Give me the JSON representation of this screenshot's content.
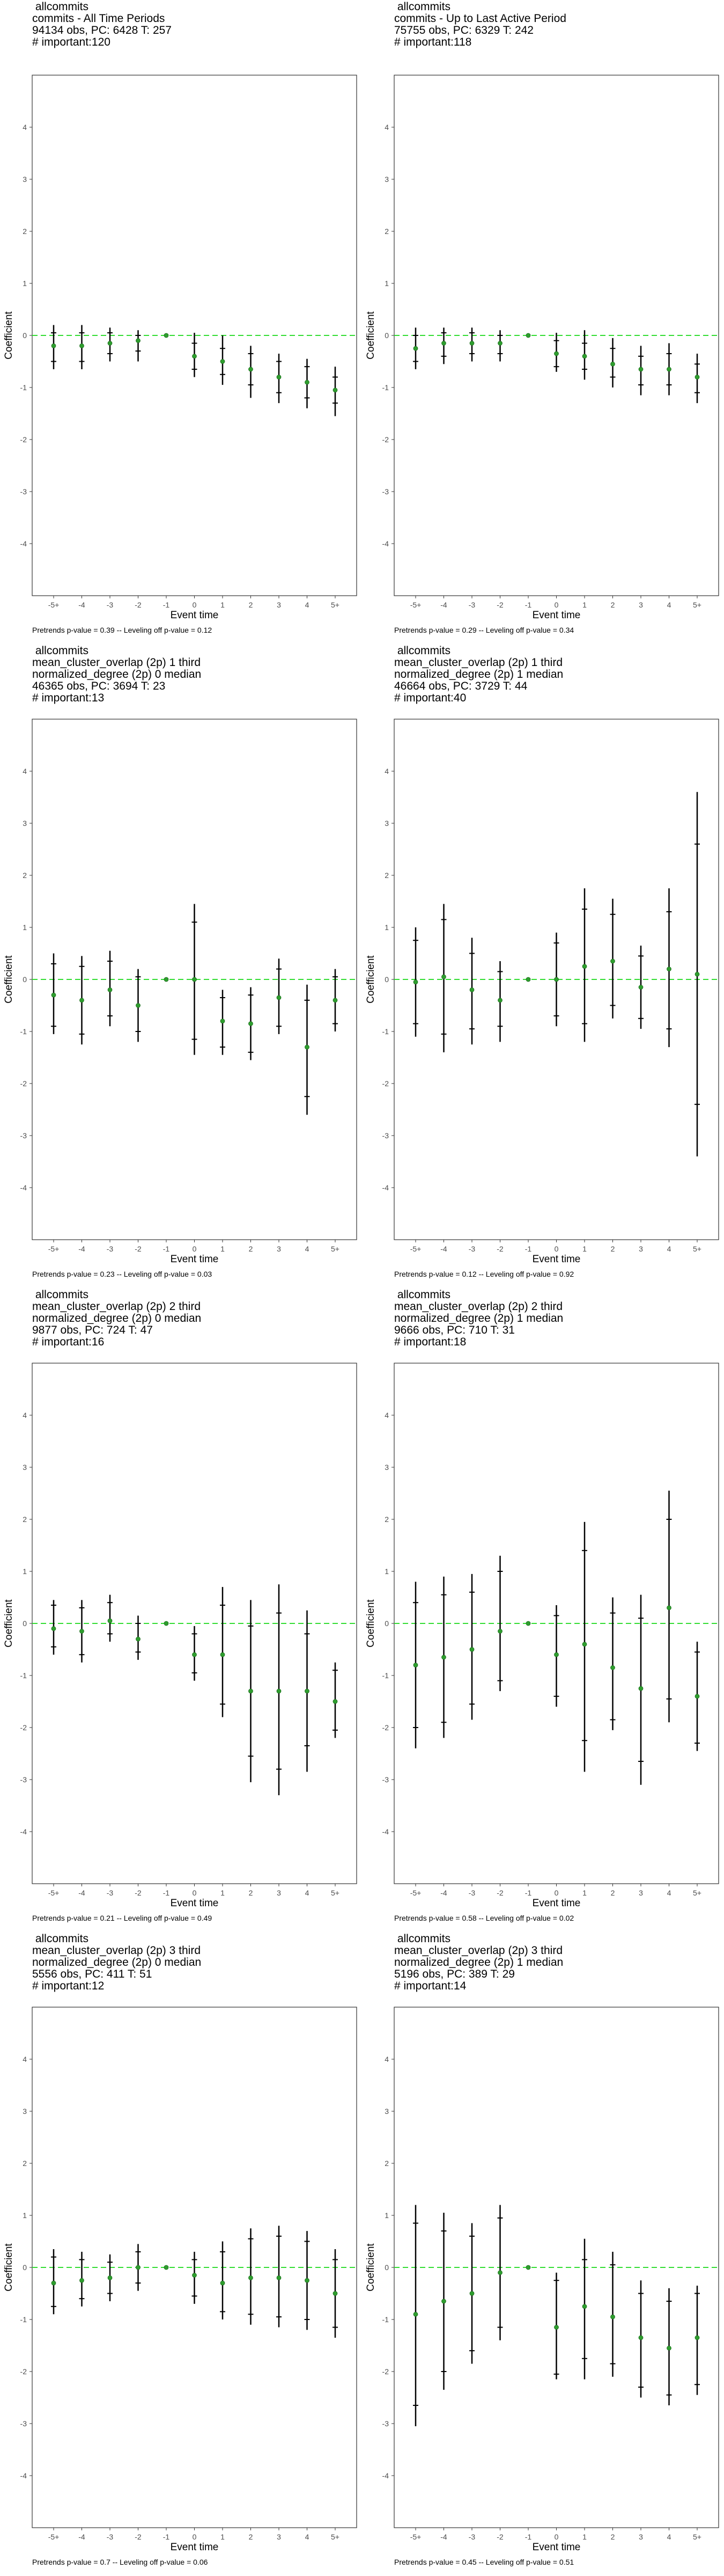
{
  "chart_data": [
    {
      "type": "scatter",
      "title_lines": [
        " allcommits",
        "commits - All Time Periods",
        "94134 obs, PC: 6428 T: 257",
        "# important:120"
      ],
      "xlabel": "Event time",
      "ylabel": "Coefficient",
      "categories": [
        "-5+",
        "-4",
        "-3",
        "-2",
        "-1",
        "0",
        "1",
        "2",
        "3",
        "4",
        "5+"
      ],
      "ylim": [
        -5,
        5
      ],
      "yticks": [
        -4,
        -3,
        -2,
        -1,
        0,
        1,
        2,
        3,
        4
      ],
      "reference_line": 0,
      "points": [
        -0.2,
        -0.2,
        -0.15,
        -0.1,
        0.0,
        -0.4,
        -0.5,
        -0.65,
        -0.8,
        -0.9,
        -1.05
      ],
      "ci_outer": [
        [
          -0.65,
          0.2
        ],
        [
          -0.65,
          0.2
        ],
        [
          -0.5,
          0.15
        ],
        [
          -0.5,
          0.1
        ],
        [
          0,
          0
        ],
        [
          -0.8,
          0.05
        ],
        [
          -0.95,
          0
        ],
        [
          -1.2,
          -0.2
        ],
        [
          -1.3,
          -0.35
        ],
        [
          -1.4,
          -0.45
        ],
        [
          -1.55,
          -0.6
        ]
      ],
      "ci_inner": [
        [
          -0.5,
          0.05
        ],
        [
          -0.5,
          0.05
        ],
        [
          -0.35,
          0.05
        ],
        [
          -0.3,
          0.0
        ],
        [
          0,
          0
        ],
        [
          -0.65,
          -0.15
        ],
        [
          -0.75,
          -0.25
        ],
        [
          -0.95,
          -0.35
        ],
        [
          -1.1,
          -0.5
        ],
        [
          -1.2,
          -0.6
        ],
        [
          -1.3,
          -0.8
        ]
      ],
      "caption": "Pretrends p-value = 0.39 -- Leveling off p-value = 0.12"
    },
    {
      "type": "scatter",
      "title_lines": [
        " allcommits",
        "commits - Up to Last Active Period",
        "75755 obs, PC: 6329 T: 242",
        "# important:118"
      ],
      "xlabel": "Event time",
      "ylabel": "Coefficient",
      "categories": [
        "-5+",
        "-4",
        "-3",
        "-2",
        "-1",
        "0",
        "1",
        "2",
        "3",
        "4",
        "5+"
      ],
      "ylim": [
        -5,
        5
      ],
      "yticks": [
        -4,
        -3,
        -2,
        -1,
        0,
        1,
        2,
        3,
        4
      ],
      "reference_line": 0,
      "points": [
        -0.25,
        -0.15,
        -0.15,
        -0.15,
        0.0,
        -0.35,
        -0.4,
        -0.55,
        -0.65,
        -0.65,
        -0.8
      ],
      "ci_outer": [
        [
          -0.65,
          0.15
        ],
        [
          -0.55,
          0.15
        ],
        [
          -0.5,
          0.15
        ],
        [
          -0.5,
          0.1
        ],
        [
          0,
          0
        ],
        [
          -0.7,
          0.05
        ],
        [
          -0.85,
          0.1
        ],
        [
          -1.0,
          -0.05
        ],
        [
          -1.15,
          -0.2
        ],
        [
          -1.15,
          -0.15
        ],
        [
          -1.3,
          -0.35
        ]
      ],
      "ci_inner": [
        [
          -0.5,
          0.0
        ],
        [
          -0.4,
          0.05
        ],
        [
          -0.35,
          0.05
        ],
        [
          -0.35,
          0.0
        ],
        [
          0,
          0
        ],
        [
          -0.6,
          -0.1
        ],
        [
          -0.65,
          -0.15
        ],
        [
          -0.8,
          -0.25
        ],
        [
          -0.95,
          -0.4
        ],
        [
          -0.95,
          -0.35
        ],
        [
          -1.1,
          -0.55
        ]
      ],
      "caption": "Pretrends p-value = 0.29 -- Leveling off p-value = 0.34"
    },
    {
      "type": "scatter",
      "title_lines": [
        " allcommits",
        "mean_cluster_overlap (2p) 1 third",
        "normalized_degree (2p) 0 median",
        "46365 obs, PC: 3694 T: 23",
        "# important:13"
      ],
      "xlabel": "Event time",
      "ylabel": "Coefficient",
      "categories": [
        "-5+",
        "-4",
        "-3",
        "-2",
        "-1",
        "0",
        "1",
        "2",
        "3",
        "4",
        "5+"
      ],
      "ylim": [
        -5,
        5
      ],
      "yticks": [
        -4,
        -3,
        -2,
        -1,
        0,
        1,
        2,
        3,
        4
      ],
      "reference_line": 0,
      "points": [
        -0.3,
        -0.4,
        -0.2,
        -0.5,
        0.0,
        0.0,
        -0.8,
        -0.85,
        -0.35,
        -1.3,
        -0.4
      ],
      "ci_outer": [
        [
          -1.05,
          0.5
        ],
        [
          -1.25,
          0.45
        ],
        [
          -0.9,
          0.55
        ],
        [
          -1.2,
          0.2
        ],
        [
          0,
          0
        ],
        [
          -1.45,
          1.45
        ],
        [
          -1.45,
          -0.2
        ],
        [
          -1.55,
          -0.15
        ],
        [
          -1.05,
          0.4
        ],
        [
          -2.6,
          -0.1
        ],
        [
          -1.0,
          0.2
        ]
      ],
      "ci_inner": [
        [
          -0.9,
          0.3
        ],
        [
          -1.05,
          0.25
        ],
        [
          -0.7,
          0.35
        ],
        [
          -1.0,
          0.05
        ],
        [
          0,
          0
        ],
        [
          -1.15,
          1.1
        ],
        [
          -1.3,
          -0.35
        ],
        [
          -1.4,
          -0.3
        ],
        [
          -0.9,
          0.2
        ],
        [
          -2.25,
          -0.4
        ],
        [
          -0.85,
          0.05
        ]
      ],
      "caption": "Pretrends p-value = 0.23 -- Leveling off p-value = 0.03"
    },
    {
      "type": "scatter",
      "title_lines": [
        " allcommits",
        "mean_cluster_overlap (2p) 1 third",
        "normalized_degree (2p) 1 median",
        "46664 obs, PC: 3729 T: 44",
        "# important:40"
      ],
      "xlabel": "Event time",
      "ylabel": "Coefficient",
      "categories": [
        "-5+",
        "-4",
        "-3",
        "-2",
        "-1",
        "0",
        "1",
        "2",
        "3",
        "4",
        "5+"
      ],
      "ylim": [
        -5,
        5
      ],
      "yticks": [
        -4,
        -3,
        -2,
        -1,
        0,
        1,
        2,
        3,
        4
      ],
      "reference_line": 0,
      "points": [
        -0.05,
        0.05,
        -0.2,
        -0.4,
        0.0,
        0.0,
        0.25,
        0.35,
        -0.15,
        0.2,
        0.1
      ],
      "ci_outer": [
        [
          -1.1,
          1.0
        ],
        [
          -1.4,
          1.45
        ],
        [
          -1.25,
          0.8
        ],
        [
          -1.2,
          0.35
        ],
        [
          0,
          0
        ],
        [
          -0.9,
          0.9
        ],
        [
          -1.2,
          1.75
        ],
        [
          -0.75,
          1.55
        ],
        [
          -0.95,
          0.65
        ],
        [
          -1.3,
          1.75
        ],
        [
          -3.4,
          3.6
        ]
      ],
      "ci_inner": [
        [
          -0.85,
          0.75
        ],
        [
          -1.05,
          1.15
        ],
        [
          -0.95,
          0.5
        ],
        [
          -0.9,
          0.15
        ],
        [
          0,
          0
        ],
        [
          -0.7,
          0.7
        ],
        [
          -0.85,
          1.35
        ],
        [
          -0.5,
          1.25
        ],
        [
          -0.75,
          0.45
        ],
        [
          -0.95,
          1.3
        ],
        [
          -2.4,
          2.6
        ]
      ],
      "caption": "Pretrends p-value = 0.12 -- Leveling off p-value = 0.92"
    },
    {
      "type": "scatter",
      "title_lines": [
        " allcommits",
        "mean_cluster_overlap (2p) 2 third",
        "normalized_degree (2p) 0 median",
        "9877 obs, PC: 724 T: 47",
        "# important:16"
      ],
      "xlabel": "Event time",
      "ylabel": "Coefficient",
      "categories": [
        "-5+",
        "-4",
        "-3",
        "-2",
        "-1",
        "0",
        "1",
        "2",
        "3",
        "4",
        "5+"
      ],
      "ylim": [
        -5,
        5
      ],
      "yticks": [
        -4,
        -3,
        -2,
        -1,
        0,
        1,
        2,
        3,
        4
      ],
      "reference_line": 0,
      "points": [
        -0.1,
        -0.15,
        0.05,
        -0.3,
        0.0,
        -0.6,
        -0.6,
        -1.3,
        -1.3,
        -1.3,
        -1.5
      ],
      "ci_outer": [
        [
          -0.6,
          0.45
        ],
        [
          -0.75,
          0.45
        ],
        [
          -0.35,
          0.55
        ],
        [
          -0.7,
          0.15
        ],
        [
          0,
          0
        ],
        [
          -1.1,
          -0.05
        ],
        [
          -1.8,
          0.7
        ],
        [
          -3.05,
          0.45
        ],
        [
          -3.3,
          0.75
        ],
        [
          -2.85,
          0.25
        ],
        [
          -2.2,
          -0.75
        ]
      ],
      "ci_inner": [
        [
          -0.45,
          0.35
        ],
        [
          -0.6,
          0.3
        ],
        [
          -0.2,
          0.4
        ],
        [
          -0.55,
          0.0
        ],
        [
          0,
          0
        ],
        [
          -0.95,
          -0.2
        ],
        [
          -1.55,
          0.35
        ],
        [
          -2.55,
          -0.05
        ],
        [
          -2.8,
          0.2
        ],
        [
          -2.35,
          -0.2
        ],
        [
          -2.05,
          -0.9
        ]
      ],
      "caption": "Pretrends p-value = 0.21 -- Leveling off p-value = 0.49"
    },
    {
      "type": "scatter",
      "title_lines": [
        " allcommits",
        "mean_cluster_overlap (2p) 2 third",
        "normalized_degree (2p) 1 median",
        "9666 obs, PC: 710 T: 31",
        "# important:18"
      ],
      "xlabel": "Event time",
      "ylabel": "Coefficient",
      "categories": [
        "-5+",
        "-4",
        "-3",
        "-2",
        "-1",
        "0",
        "1",
        "2",
        "3",
        "4",
        "5+"
      ],
      "ylim": [
        -5,
        5
      ],
      "yticks": [
        -4,
        -3,
        -2,
        -1,
        0,
        1,
        2,
        3,
        4
      ],
      "reference_line": 0,
      "points": [
        -0.8,
        -0.65,
        -0.5,
        -0.15,
        0.0,
        -0.6,
        -0.4,
        -0.85,
        -1.25,
        0.3,
        -1.4
      ],
      "ci_outer": [
        [
          -2.4,
          0.8
        ],
        [
          -2.2,
          0.9
        ],
        [
          -1.85,
          0.95
        ],
        [
          -1.3,
          1.3
        ],
        [
          0,
          0
        ],
        [
          -1.6,
          0.35
        ],
        [
          -2.85,
          1.95
        ],
        [
          -2.05,
          0.5
        ],
        [
          -3.1,
          0.55
        ],
        [
          -1.9,
          2.55
        ],
        [
          -2.45,
          -0.35
        ]
      ],
      "ci_inner": [
        [
          -2.0,
          0.4
        ],
        [
          -1.9,
          0.55
        ],
        [
          -1.55,
          0.6
        ],
        [
          -1.1,
          1.0
        ],
        [
          0,
          0
        ],
        [
          -1.4,
          0.15
        ],
        [
          -2.25,
          1.4
        ],
        [
          -1.85,
          0.2
        ],
        [
          -2.65,
          0.1
        ],
        [
          -1.45,
          2.0
        ],
        [
          -2.3,
          -0.55
        ]
      ],
      "caption": "Pretrends p-value = 0.58 -- Leveling off p-value = 0.02"
    },
    {
      "type": "scatter",
      "title_lines": [
        " allcommits",
        "mean_cluster_overlap (2p) 3 third",
        "normalized_degree (2p) 0 median",
        "5556 obs, PC: 411 T: 51",
        "# important:12"
      ],
      "xlabel": "Event time",
      "ylabel": "Coefficient",
      "categories": [
        "-5+",
        "-4",
        "-3",
        "-2",
        "-1",
        "0",
        "1",
        "2",
        "3",
        "4",
        "5+"
      ],
      "ylim": [
        -5,
        5
      ],
      "yticks": [
        -4,
        -3,
        -2,
        -1,
        0,
        1,
        2,
        3,
        4
      ],
      "reference_line": 0,
      "points": [
        -0.3,
        -0.25,
        -0.2,
        0.0,
        0.0,
        -0.15,
        -0.3,
        -0.2,
        -0.2,
        -0.25,
        -0.5
      ],
      "ci_outer": [
        [
          -0.9,
          0.35
        ],
        [
          -0.75,
          0.3
        ],
        [
          -0.65,
          0.25
        ],
        [
          -0.45,
          0.45
        ],
        [
          0,
          0
        ],
        [
          -0.7,
          0.3
        ],
        [
          -1.0,
          0.5
        ],
        [
          -1.1,
          0.75
        ],
        [
          -1.15,
          0.8
        ],
        [
          -1.2,
          0.7
        ],
        [
          -1.35,
          0.35
        ]
      ],
      "ci_inner": [
        [
          -0.75,
          0.2
        ],
        [
          -0.6,
          0.15
        ],
        [
          -0.5,
          0.1
        ],
        [
          -0.3,
          0.3
        ],
        [
          0,
          0
        ],
        [
          -0.55,
          0.15
        ],
        [
          -0.85,
          0.3
        ],
        [
          -0.9,
          0.55
        ],
        [
          -0.95,
          0.6
        ],
        [
          -1.0,
          0.5
        ],
        [
          -1.15,
          0.15
        ]
      ],
      "caption": "Pretrends p-value = 0.7 -- Leveling off p-value = 0.06"
    },
    {
      "type": "scatter",
      "title_lines": [
        " allcommits",
        "mean_cluster_overlap (2p) 3 third",
        "normalized_degree (2p) 1 median",
        "5196 obs, PC: 389 T: 29",
        "# important:14"
      ],
      "xlabel": "Event time",
      "ylabel": "Coefficient",
      "categories": [
        "-5+",
        "-4",
        "-3",
        "-2",
        "-1",
        "0",
        "1",
        "2",
        "3",
        "4",
        "5+"
      ],
      "ylim": [
        -5,
        5
      ],
      "yticks": [
        -4,
        -3,
        -2,
        -1,
        0,
        1,
        2,
        3,
        4
      ],
      "reference_line": 0,
      "points": [
        -0.9,
        -0.65,
        -0.5,
        -0.1,
        0.0,
        -1.15,
        -0.75,
        -0.95,
        -1.35,
        -1.55,
        -1.35
      ],
      "ci_outer": [
        [
          -3.05,
          1.2
        ],
        [
          -2.35,
          1.05
        ],
        [
          -1.85,
          0.85
        ],
        [
          -1.4,
          1.2
        ],
        [
          0,
          0
        ],
        [
          -2.15,
          -0.1
        ],
        [
          -2.15,
          0.55
        ],
        [
          -2.1,
          0.3
        ],
        [
          -2.5,
          -0.25
        ],
        [
          -2.65,
          -0.4
        ],
        [
          -2.45,
          -0.35
        ]
      ],
      "ci_inner": [
        [
          -2.65,
          0.85
        ],
        [
          -2.0,
          0.7
        ],
        [
          -1.6,
          0.6
        ],
        [
          -1.15,
          0.95
        ],
        [
          0,
          0
        ],
        [
          -2.05,
          -0.25
        ],
        [
          -1.75,
          0.15
        ],
        [
          -1.85,
          0.05
        ],
        [
          -2.3,
          -0.5
        ],
        [
          -2.45,
          -0.65
        ],
        [
          -2.25,
          -0.5
        ]
      ],
      "caption": "Pretrends p-value = 0.45 -- Leveling off p-value = 0.51"
    }
  ]
}
